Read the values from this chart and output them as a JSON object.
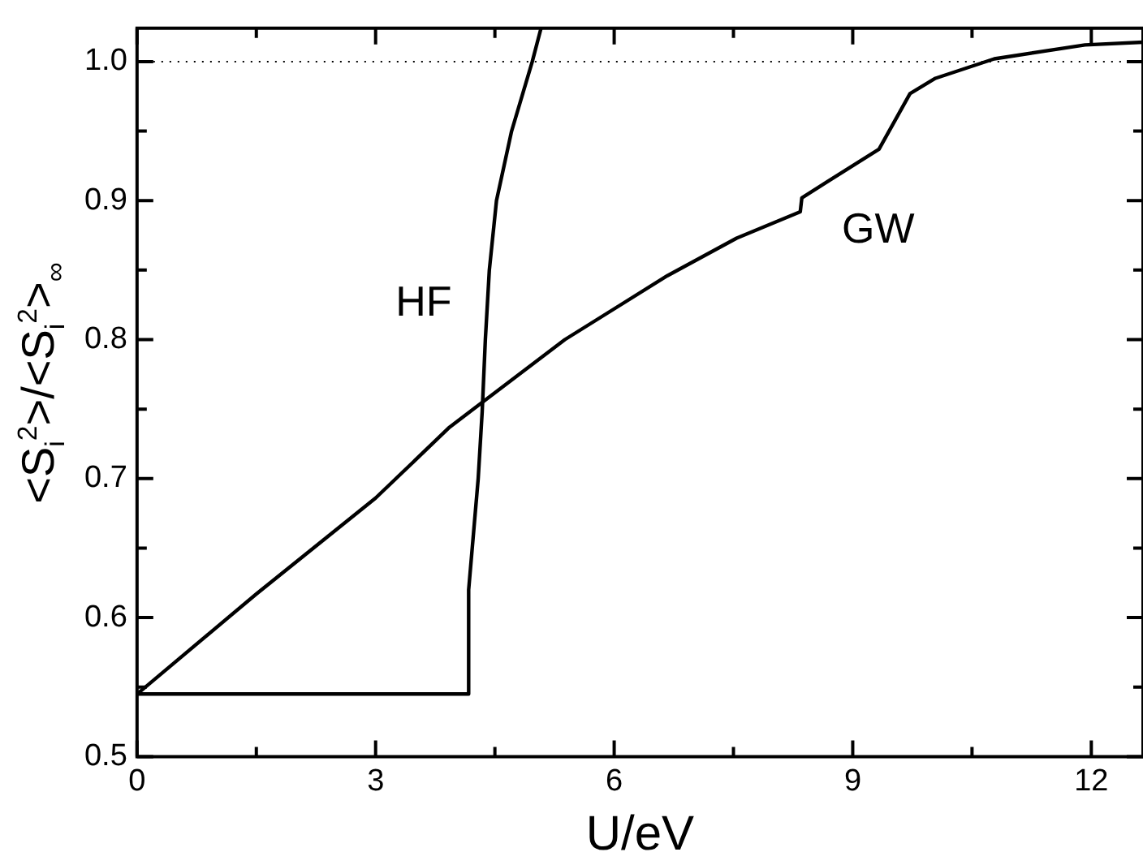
{
  "chart_data": {
    "type": "line",
    "xlabel": "U/eV",
    "ylabel": "<S$_{i}$$^{2}$>/<S$_{i}$$^{2}$>$_{∞}$",
    "xlim": [
      0,
      12.65
    ],
    "ylim": [
      0.5,
      1.024
    ],
    "xticks": [
      0,
      {
        "value": 1.5,
        "label": null
      },
      3,
      {
        "value": 4.5,
        "label": null
      },
      6,
      {
        "value": 7.5,
        "label": null
      },
      9,
      {
        "value": 10.5,
        "label": null
      },
      12
    ],
    "yticks": [
      0.5,
      {
        "value": 0.55,
        "label": null
      },
      0.6,
      {
        "value": 0.65,
        "label": null
      },
      0.7,
      {
        "value": 0.75,
        "label": null
      },
      0.8,
      {
        "value": 0.85,
        "label": null
      },
      0.9,
      {
        "value": 0.95,
        "label": null
      },
      {
        "value": 1,
        "label": "1.0"
      }
    ],
    "grid": false,
    "legend": false,
    "marker": "none",
    "line_style": "solid",
    "series": [
      {
        "name": "HF",
        "color": "#000000",
        "x": [
          0,
          4.17,
          4.17,
          4.29,
          4.34,
          4.38,
          4.43,
          4.52,
          4.71,
          4.97,
          5.08
        ],
        "values": [
          0.545,
          0.545,
          0.62,
          0.7,
          0.748,
          0.8,
          0.85,
          0.9,
          0.95,
          1.0,
          1.024
        ]
      },
      {
        "name": "GW",
        "color": "#000000",
        "x": [
          0,
          1.5,
          3,
          3.93,
          5.38,
          6.67,
          7.54,
          8.34,
          8.36,
          9.33,
          9.72,
          10.04,
          10.78,
          11.92,
          12.65
        ],
        "values": [
          0.545,
          0.617,
          0.686,
          0.737,
          0.8,
          0.846,
          0.873,
          0.892,
          0.902,
          0.937,
          0.977,
          0.988,
          1.002,
          1.012,
          1.014
        ]
      }
    ],
    "ref_lines": [
      {
        "axis": "y",
        "value": 1,
        "color": "#000000",
        "line_style": "dotted"
      }
    ]
  }
}
